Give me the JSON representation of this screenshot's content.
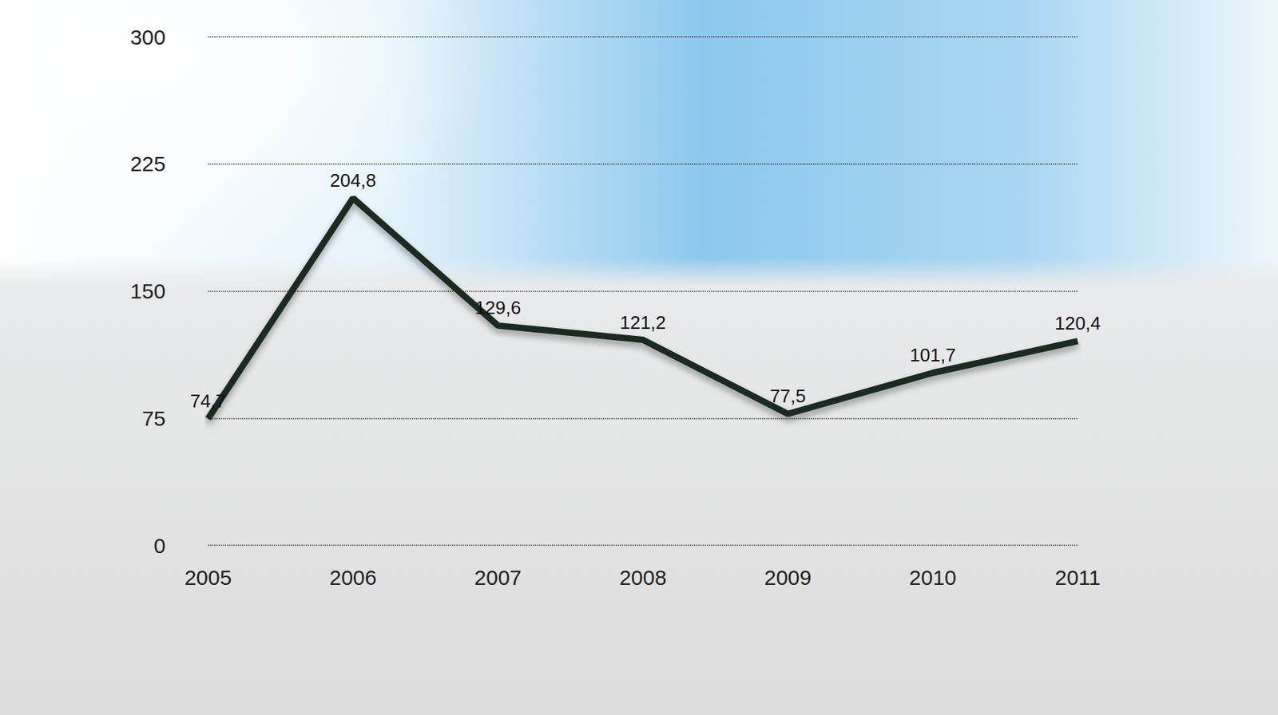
{
  "chart_data": {
    "type": "line",
    "categories": [
      "2005",
      "2006",
      "2007",
      "2008",
      "2009",
      "2010",
      "2011"
    ],
    "values": [
      74.7,
      204.8,
      129.6,
      121.2,
      77.5,
      101.7,
      120.4
    ],
    "value_labels": [
      "74,7",
      "204,8",
      "129,6",
      "121,2",
      "77,5",
      "101,7",
      "120,4"
    ],
    "ylim": [
      0,
      300
    ],
    "yticks": [
      0,
      75,
      150,
      225,
      300
    ],
    "grid": true,
    "data_labels": true,
    "color": "#1c2b24"
  }
}
